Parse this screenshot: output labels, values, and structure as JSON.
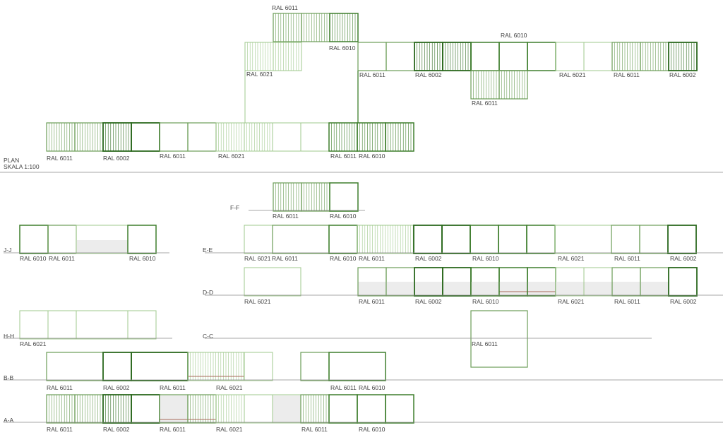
{
  "colors": {
    "RAL 6002": "#2c6a1f",
    "RAL 6010": "#3f7f2d",
    "RAL 6011": "#6b9d57",
    "RAL 6021": "#9fc88c",
    "ground": "#8a8a8a",
    "shade": "#ececec",
    "red": "#a86a5a",
    "text": "#444444"
  },
  "plan": {
    "title": "PLAN",
    "scale": "SKALA 1:100",
    "labels": [
      "RAL 6011",
      "RAL 6010",
      "RAL 6021",
      "RAL 6011",
      "RAL 6002",
      "RAL 6010",
      "RAL 6021",
      "RAL 6011",
      "RAL 6002",
      "RAL 6011",
      "RAL 6011",
      "RAL 6002",
      "RAL 6011",
      "RAL 6021",
      "RAL 6011",
      "RAL 6010"
    ]
  },
  "sections": [
    {
      "name": "F-F",
      "labels": [
        "RAL 6011",
        "RAL 6010"
      ]
    },
    {
      "name": "J-J",
      "labels": [
        "RAL 6010",
        "RAL 6011",
        "RAL 6010"
      ]
    },
    {
      "name": "E-E",
      "labels": [
        "RAL 6021",
        "RAL 6011",
        "RAL 6010",
        "RAL 6011",
        "RAL 6002",
        "RAL 6010",
        "RAL 6021",
        "RAL 6011",
        "RAL 6002"
      ]
    },
    {
      "name": "D-D",
      "labels": [
        "RAL 6021",
        "RAL 6011",
        "RAL 6002",
        "RAL 6010",
        "RAL 6021",
        "RAL 6011",
        "RAL 6002"
      ]
    },
    {
      "name": "H-H",
      "labels": [
        "RAL 6021"
      ]
    },
    {
      "name": "C-C",
      "labels": [
        "RAL 6011"
      ]
    },
    {
      "name": "B-B",
      "labels": [
        "RAL 6011",
        "RAL 6002",
        "RAL 6011",
        "RAL 6021",
        "RAL 6011",
        "RAL 6010"
      ]
    },
    {
      "name": "A-A",
      "labels": [
        "RAL 6011",
        "RAL 6002",
        "RAL 6011",
        "RAL 6021",
        "RAL 6011",
        "RAL 6010"
      ]
    }
  ]
}
